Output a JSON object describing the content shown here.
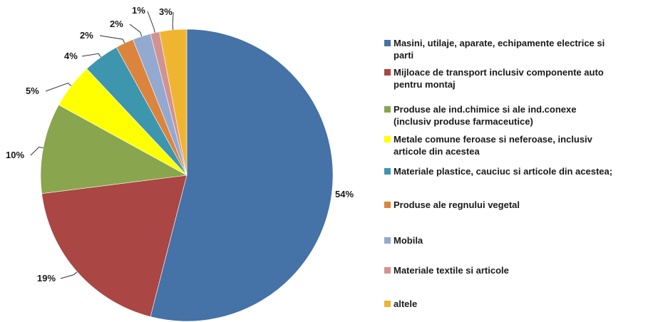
{
  "chart_data": {
    "type": "pie",
    "legend_position": "right",
    "start_angle_deg": 0,
    "direction": "clockwise",
    "slices": [
      {
        "name": "Masini, utilaje, aparate, echipamente electrice si parti",
        "value": 54,
        "label": "54%",
        "color": "#4572a7"
      },
      {
        "name": "Mijloace de transport inclusiv componente auto pentru montaj",
        "value": 19,
        "label": "19%",
        "color": "#aa4643"
      },
      {
        "name": "Produse ale ind.chimice si ale ind.conexe (inclusiv produse farmaceutice)",
        "value": 10,
        "label": "10%",
        "color": "#89a54e"
      },
      {
        "name": "Metale comune feroase si neferoase, inclusiv articole din acestea",
        "value": 5,
        "label": "5%",
        "color": "#ffff00"
      },
      {
        "name": "Materiale plastice, cauciuc si articole din acestea;",
        "value": 4,
        "label": "4%",
        "color": "#3d96ae"
      },
      {
        "name": "Produse ale regnului vegetal",
        "value": 2,
        "label": "2%",
        "color": "#db843d"
      },
      {
        "name": "Mobila",
        "value": 2,
        "label": "2%",
        "color": "#93a9cf"
      },
      {
        "name": "Materiale textile si articole",
        "value": 1,
        "label": "1%",
        "color": "#d19392"
      },
      {
        "name": "altele",
        "value": 3,
        "label": "3%",
        "color": "#f0b530"
      }
    ]
  }
}
